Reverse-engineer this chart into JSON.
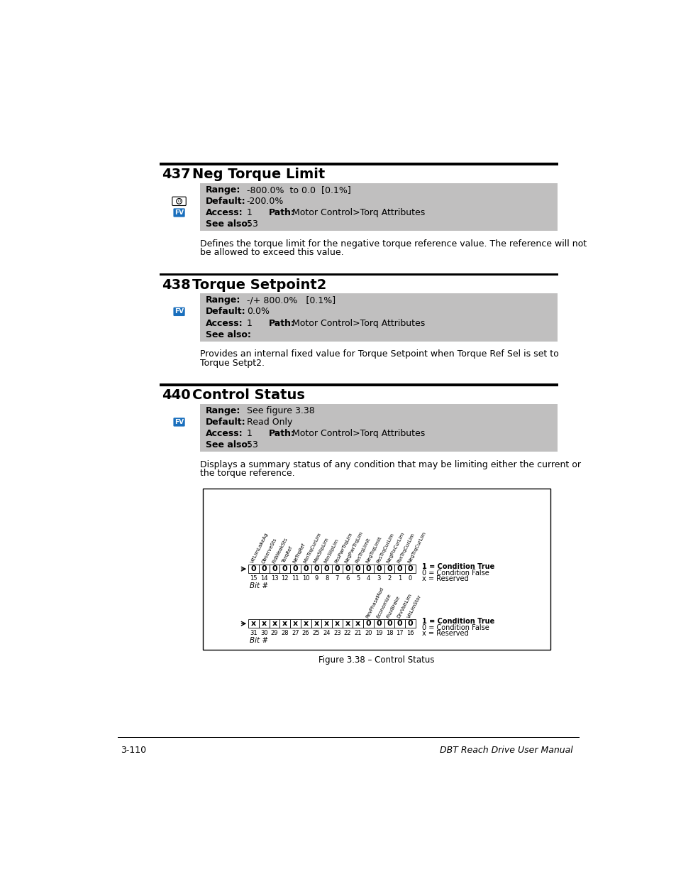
{
  "page_bg": "#ffffff",
  "params": [
    {
      "number": "437",
      "title": "Neg Torque Limit",
      "range": "-800.0%  to 0.0  [0.1%]",
      "default": "-200.0%",
      "access": "1",
      "path": "Motor Control>Torq Attributes",
      "see_also": "53",
      "icons": [
        "circle_o",
        "fv"
      ],
      "description": "Defines the torque limit for the negative torque reference value. The reference will not\nbe allowed to exceed this value."
    },
    {
      "number": "438",
      "title": "Torque Setpoint2",
      "range": "-/+ 800.0%   [0.1%]",
      "default": "0.0%",
      "access": "1",
      "path": "Motor Control>Torq Attributes",
      "see_also": "",
      "icons": [
        "fv"
      ],
      "description": "Provides an internal fixed value for Torque Setpoint when Torque Ref Sel is set to\nTorque Setpt2."
    },
    {
      "number": "440",
      "title": "Control Status",
      "range": "See figure 3.38",
      "default": "Read Only",
      "access": "1",
      "path": "Motor Control>Torq Attributes",
      "see_also": "53",
      "icons": [
        "fv"
      ],
      "description": "Displays a summary status of any condition that may be limiting either the current or\nthe torque reference."
    }
  ],
  "figure_caption": "Figure 3.38 – Control Status",
  "footer_left": "3-110",
  "footer_right": "DBT Reach Drive User Manual",
  "gray_bg": "#c0bfbf",
  "header_bar_color": "#000000",
  "icon_fv_bg": "#1a6fbd",
  "icon_fv_text": "#ffffff",
  "upper_bits": [
    "0",
    "0",
    "0",
    "0",
    "0",
    "0",
    "0",
    "0",
    "0",
    "0",
    "0",
    "0",
    "0",
    "0",
    "0",
    "0"
  ],
  "upper_bit_nums": [
    "15",
    "14",
    "13",
    "12",
    "11",
    "10",
    "9",
    "8",
    "7",
    "6",
    "5",
    "4",
    "3",
    "2",
    "1",
    "0"
  ],
  "upper_labels": [
    "VltLimLakeAg",
    "ObserveSts",
    "FldWeakSts",
    "TorqRef",
    "NeTrqRef",
    "MinTrqCurLim",
    "MaxSlipLim",
    "MinSlipLim",
    "PosPwrTrqLim",
    "NegPwrTrqLim",
    "PosTrqLimit",
    "NegTrqLimit",
    "PosTrqCurLim",
    "NegFixCurLim",
    "PosTrqCurLim",
    "NegTrqCurLim"
  ],
  "lower_bits": [
    "x",
    "x",
    "x",
    "x",
    "x",
    "x",
    "x",
    "x",
    "x",
    "x",
    "x",
    "0",
    "0",
    "0",
    "0",
    "0"
  ],
  "lower_bit_nums": [
    "31",
    "30",
    "29",
    "28",
    "27",
    "26",
    "25",
    "24",
    "23",
    "22",
    "21",
    "20",
    "19",
    "18",
    "17",
    "16"
  ],
  "lower_labels": [
    "RevPhaseMod",
    "Economize",
    "FluxBrake",
    "DrvVoltLim",
    "VltLimStor"
  ]
}
